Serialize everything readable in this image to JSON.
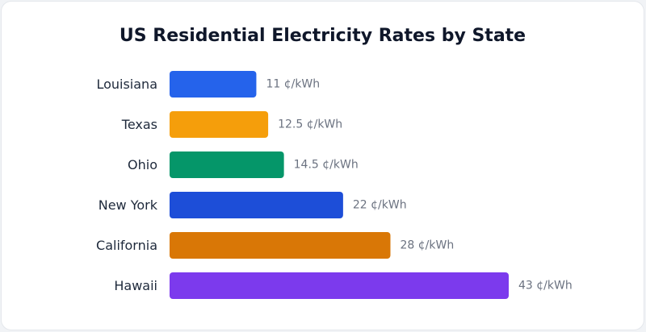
{
  "chart_data": {
    "type": "bar",
    "orientation": "horizontal",
    "title": "US Residential Electricity Rates by State",
    "categories": [
      "Louisiana",
      "Texas",
      "Ohio",
      "New York",
      "California",
      "Hawaii"
    ],
    "values": [
      11,
      12.5,
      14.5,
      22,
      28,
      43
    ],
    "value_labels": [
      "11 ¢/kWh",
      "12.5 ¢/kWh",
      "14.5 ¢/kWh",
      "22 ¢/kWh",
      "28 ¢/kWh",
      "43 ¢/kWh"
    ],
    "unit": "¢/kWh",
    "colors": [
      "#2563eb",
      "#f59e0b",
      "#059669",
      "#1d4ed8",
      "#d97706",
      "#7c3aed"
    ],
    "xlim": [
      0,
      43
    ],
    "grid": false,
    "legend": "none"
  }
}
